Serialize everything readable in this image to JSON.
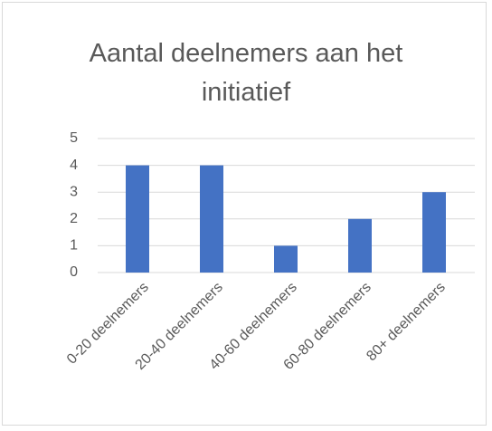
{
  "chart_data": {
    "type": "bar",
    "title": "Aantal deelnemers aan het initiatief",
    "categories": [
      "0-20 deelnemers",
      "20-40 deelnemers",
      "40-60 deelnemers",
      "60-80 deelnemers",
      "80+ deelnemers"
    ],
    "values": [
      4,
      4,
      1,
      2,
      3
    ],
    "color": "#4472c4",
    "ylim": [
      0,
      5
    ],
    "yticks": [
      0,
      1,
      2,
      3,
      4,
      5
    ],
    "grid": true
  }
}
